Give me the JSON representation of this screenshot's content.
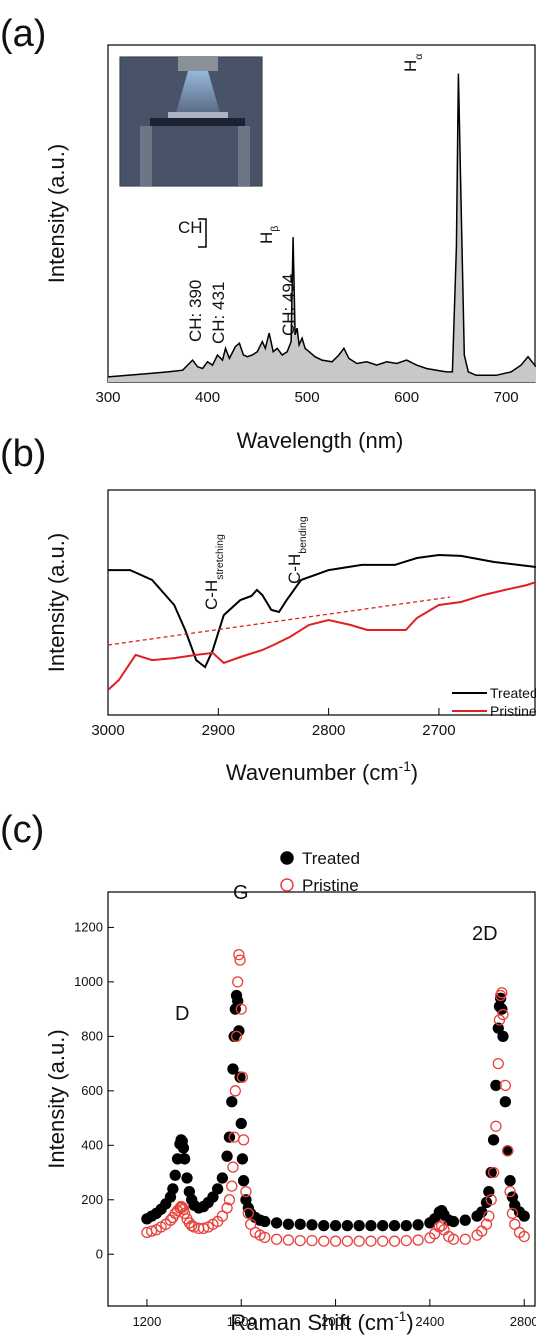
{
  "chart_data": [
    {
      "type": "area",
      "panel_label": "(a)",
      "x_label": "Wavelength (nm)",
      "y_label": "Intensity (a.u.)",
      "xlim": [
        300,
        730
      ],
      "ylim": [
        0,
        100
      ],
      "xticks": [
        300,
        400,
        500,
        600,
        700
      ],
      "color": "#000000",
      "fill": "#c8c8c8",
      "x": [
        300,
        320,
        340,
        360,
        375,
        380,
        385,
        390,
        395,
        400,
        405,
        410,
        415,
        418,
        422,
        428,
        432,
        436,
        440,
        445,
        450,
        455,
        458,
        462,
        466,
        470,
        475,
        480,
        484,
        486,
        488,
        490,
        492,
        495,
        498,
        502,
        508,
        515,
        525,
        532,
        537,
        542,
        550,
        560,
        570,
        580,
        590,
        600,
        610,
        620,
        630,
        640,
        646,
        650,
        652,
        655,
        658,
        662,
        670,
        690,
        705,
        715,
        722,
        730
      ],
      "values": [
        1.5,
        2,
        2.5,
        3,
        3.5,
        5,
        6.5,
        4.5,
        4,
        6,
        5,
        8,
        6.5,
        10,
        7,
        10.5,
        11.5,
        8,
        7.5,
        8,
        9,
        12,
        10,
        14.5,
        9,
        10,
        8,
        9,
        12,
        43,
        14,
        16,
        11,
        13,
        10,
        9,
        7.5,
        6.5,
        6,
        8,
        10,
        7,
        5.5,
        6,
        5,
        6,
        5.5,
        6.5,
        5,
        4,
        3.5,
        3,
        3,
        40,
        91.5,
        50,
        8,
        3,
        2,
        2,
        3,
        5,
        7.5,
        4.5
      ],
      "annotations": [
        {
          "text": "CH: 390"
        },
        {
          "text": "CH: 431"
        },
        {
          "text": "CH"
        },
        {
          "text": "H",
          "sub": "β"
        },
        {
          "text": "CH: 494"
        },
        {
          "text": "H",
          "sub": "α"
        }
      ]
    },
    {
      "type": "line",
      "panel_label": "(b)",
      "x_label": [
        "Wavenumber (cm",
        "-1",
        ")"
      ],
      "y_label": "Intensity (a.u.)",
      "xlim": [
        3000,
        2612
      ],
      "ylim": [
        0,
        100
      ],
      "xticks": [
        3000,
        2900,
        2800,
        2700
      ],
      "series": [
        {
          "name": "Treated",
          "color": "#000000",
          "x": [
            3000,
            2980,
            2960,
            2940,
            2930,
            2920,
            2912,
            2905,
            2895,
            2880,
            2870,
            2865,
            2860,
            2852,
            2845,
            2838,
            2825,
            2800,
            2770,
            2740,
            2720,
            2700,
            2680,
            2650,
            2612
          ],
          "values": [
            64.4,
            64.4,
            60,
            48.9,
            37.8,
            24.4,
            21.3,
            28.9,
            44.4,
            51.1,
            52.9,
            55.6,
            53.3,
            46.7,
            45.8,
            51.1,
            60,
            64.4,
            66.7,
            66.7,
            69.8,
            71.1,
            70.7,
            68,
            65.8
          ]
        },
        {
          "name": "Pristine",
          "color": "#e02020",
          "x": [
            3000,
            2990,
            2975,
            2960,
            2940,
            2920,
            2905,
            2895,
            2880,
            2860,
            2850,
            2835,
            2818,
            2800,
            2780,
            2765,
            2745,
            2730,
            2720,
            2700,
            2680,
            2660,
            2640,
            2620,
            2612
          ],
          "values": [
            11.1,
            15.6,
            26.7,
            24.4,
            25.3,
            26.7,
            27.6,
            23.1,
            25.8,
            28.9,
            31.1,
            34.7,
            40,
            42.2,
            40,
            37.8,
            37.8,
            37.8,
            43.1,
            48.9,
            50.2,
            53.3,
            55.6,
            57.8,
            59.1
          ]
        }
      ],
      "fit_line": {
        "color": "#e02020",
        "x": [
          3000,
          2690
        ],
        "values": [
          31.1,
          52.4
        ]
      },
      "annotations": [
        {
          "text": "C-H",
          "sub": "stretching"
        },
        {
          "text": "C-H",
          "sub": "bending"
        }
      ]
    },
    {
      "type": "scatter",
      "panel_label": "(c)",
      "x_label": [
        "Raman Shift (cm",
        "-1",
        ")"
      ],
      "y_label": "Intensity (a.u.)",
      "xlim": [
        1035,
        2850
      ],
      "ylim": [
        -190,
        1330
      ],
      "xticks": [
        1200,
        1600,
        2000,
        2400,
        2800
      ],
      "yticks": [
        0,
        200,
        400,
        600,
        800,
        1000,
        1200
      ],
      "x": [
        1200,
        1220,
        1240,
        1260,
        1280,
        1300,
        1310,
        1320,
        1330,
        1340,
        1345,
        1350,
        1355,
        1360,
        1370,
        1380,
        1390,
        1400,
        1420,
        1440,
        1460,
        1480,
        1500,
        1520,
        1540,
        1550,
        1560,
        1565,
        1570,
        1575,
        1580,
        1585,
        1590,
        1595,
        1600,
        1605,
        1610,
        1620,
        1630,
        1640,
        1660,
        1680,
        1700,
        1750,
        1800,
        1850,
        1900,
        1950,
        2000,
        2050,
        2100,
        2150,
        2200,
        2250,
        2300,
        2350,
        2400,
        2420,
        2440,
        2450,
        2460,
        2480,
        2500,
        2550,
        2600,
        2620,
        2640,
        2650,
        2660,
        2670,
        2680,
        2690,
        2695,
        2700,
        2705,
        2710,
        2720,
        2730,
        2740,
        2750,
        2760,
        2780,
        2800
      ],
      "series": [
        {
          "name": "Treated",
          "color": "#000000",
          "marker": "filled",
          "values": [
            130,
            140,
            150,
            165,
            185,
            210,
            240,
            290,
            350,
            405,
            420,
            415,
            390,
            350,
            280,
            230,
            200,
            180,
            170,
            175,
            190,
            210,
            240,
            280,
            360,
            430,
            560,
            680,
            800,
            900,
            950,
            930,
            820,
            650,
            480,
            350,
            270,
            200,
            170,
            150,
            135,
            125,
            120,
            115,
            110,
            110,
            108,
            105,
            105,
            105,
            105,
            105,
            105,
            105,
            105,
            108,
            115,
            130,
            155,
            160,
            145,
            125,
            120,
            125,
            140,
            155,
            190,
            230,
            300,
            420,
            620,
            830,
            910,
            940,
            900,
            800,
            560,
            380,
            270,
            210,
            180,
            155,
            140
          ]
        },
        {
          "name": "Pristine",
          "color": "#e8413c",
          "marker": "open",
          "values": [
            80,
            85,
            90,
            100,
            110,
            125,
            135,
            150,
            160,
            170,
            175,
            172,
            165,
            150,
            130,
            115,
            105,
            100,
            95,
            95,
            100,
            110,
            120,
            140,
            170,
            200,
            250,
            320,
            430,
            600,
            800,
            1000,
            1100,
            1080,
            900,
            650,
            420,
            230,
            150,
            110,
            80,
            70,
            62,
            55,
            52,
            50,
            50,
            48,
            48,
            48,
            48,
            48,
            48,
            48,
            50,
            52,
            60,
            75,
            100,
            105,
            90,
            65,
            55,
            55,
            70,
            85,
            110,
            140,
            200,
            300,
            470,
            700,
            860,
            950,
            960,
            880,
            620,
            380,
            230,
            150,
            110,
            80,
            65
          ]
        }
      ],
      "annotations": [
        {
          "text": "D"
        },
        {
          "text": "G"
        },
        {
          "text": "2D"
        }
      ]
    }
  ]
}
